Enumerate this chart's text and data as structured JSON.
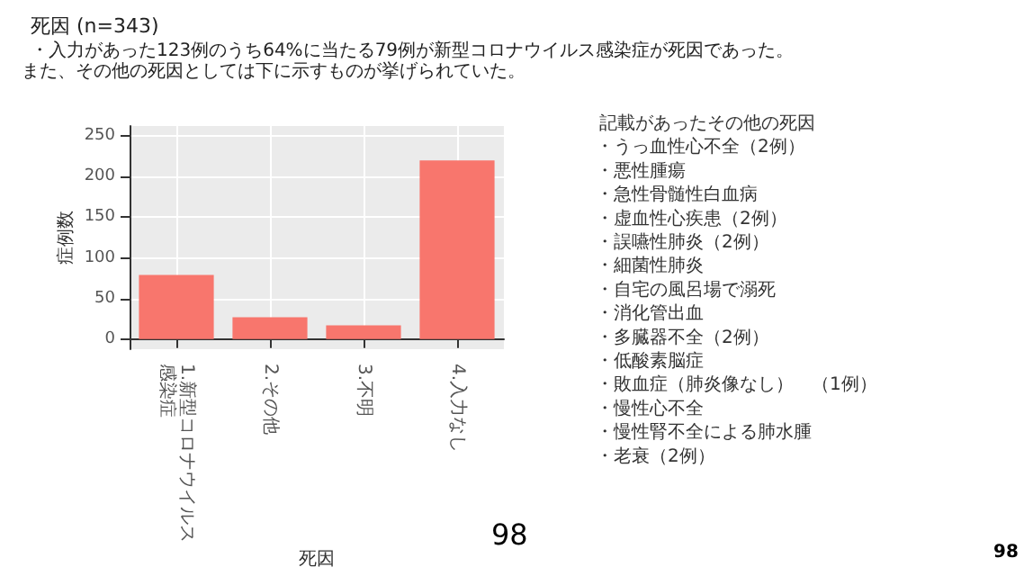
{
  "chart_data": {
    "type": "bar",
    "title": "死因 (n=343)",
    "subtitle": "・入力があった123例のうち64%に当たる79例が新型コロナウイルス感染症が死因であった。",
    "xlabel": "死因",
    "ylabel": "症例数",
    "categories": [
      "1.新型コロナウイルス感染症",
      "2.その他",
      "3.不明",
      "4.入力なし"
    ],
    "values": [
      79,
      27,
      17,
      220
    ],
    "color": "#f8766d",
    "ylim": [
      -12.5,
      262.5
    ],
    "yticks": [
      0,
      50,
      100,
      150,
      200,
      250
    ],
    "grid": true,
    "annotations": [
      "また、その他の死因としては下に示すものが挙げられていた。",
      "記載があったその他の死因",
      "・うっ血性心不全（2例）",
      "・悪性腫瘍",
      "・急性骨髄性白血病",
      "・虚血性心疾患（2例）",
      "・誤嚥性肺炎（2例）",
      "・細菌性肺炎",
      "・自宅の風呂場で溺死",
      "・消化管出血",
      "・多臓器不全（2例）",
      "・低酸素脳症",
      "・敗血症（肺炎像なし）　（1例）",
      "・慢性心不全",
      "・慢性腎不全による肺水腫",
      "・老衰（2例）",
      "98",
      "98"
    ]
  }
}
